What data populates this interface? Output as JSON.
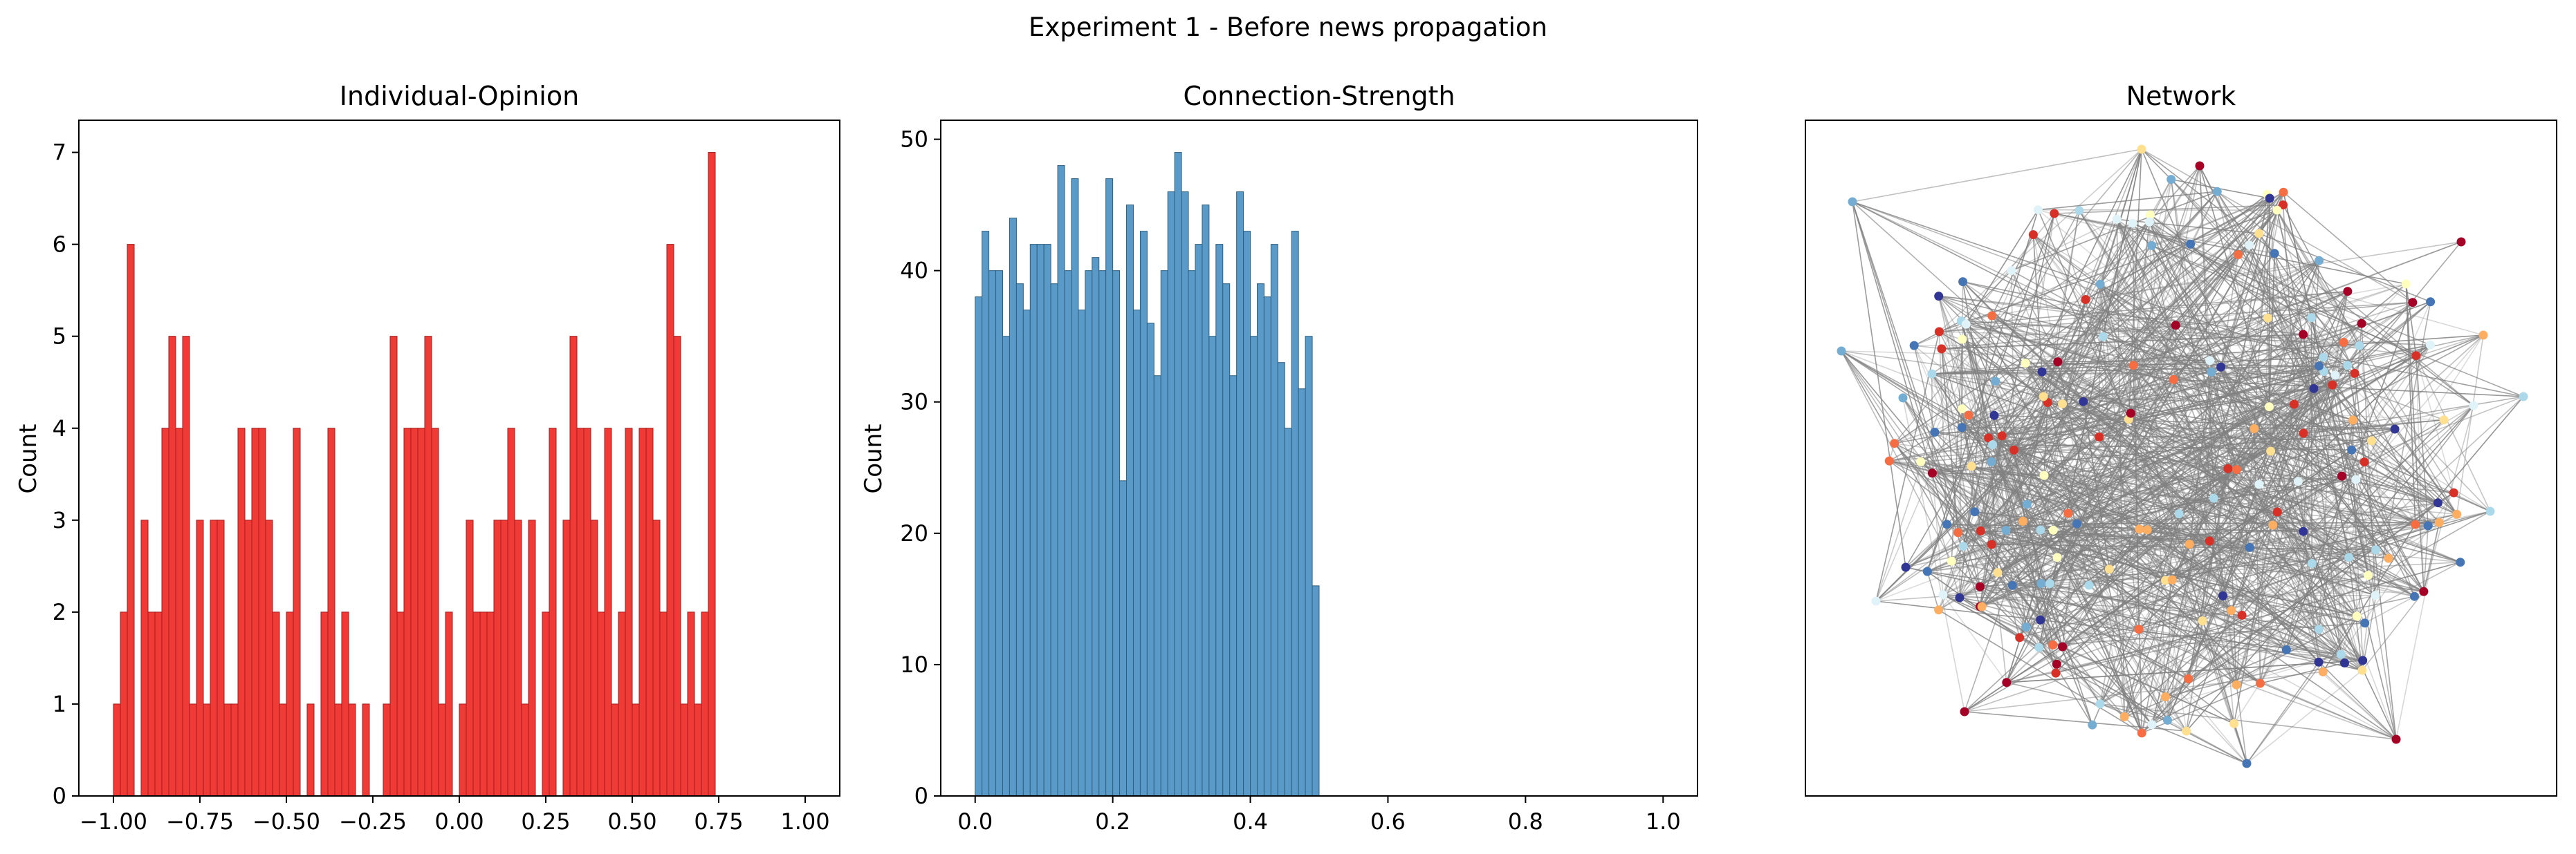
{
  "figure_title": "Experiment 1 - Before news propagation",
  "chart_data": [
    {
      "type": "bar",
      "title": "Individual-Opinion",
      "xlabel": "",
      "ylabel": "Count",
      "xlim": [
        -1.1,
        1.1
      ],
      "ylim": [
        0,
        7.35
      ],
      "xticks": [
        -1.0,
        -0.75,
        -0.5,
        -0.25,
        0.0,
        0.25,
        0.5,
        0.75,
        1.0
      ],
      "xtick_labels": [
        "−1.00",
        "−0.75",
        "−0.50",
        "−0.25",
        "0.00",
        "0.25",
        "0.50",
        "0.75",
        "1.00"
      ],
      "yticks": [
        0,
        1,
        2,
        3,
        4,
        5,
        6,
        7
      ],
      "ytick_labels": [
        "0",
        "1",
        "2",
        "3",
        "4",
        "5",
        "6",
        "7"
      ],
      "bin_start": -1.0,
      "bin_width": 0.02,
      "values": [
        1,
        2,
        6,
        0,
        3,
        2,
        2,
        4,
        5,
        4,
        5,
        1,
        3,
        1,
        3,
        3,
        1,
        1,
        4,
        3,
        4,
        4,
        3,
        2,
        1,
        2,
        4,
        0,
        1,
        0,
        2,
        4,
        1,
        2,
        1,
        0,
        1,
        0,
        0,
        1,
        5,
        2,
        4,
        4,
        4,
        5,
        4,
        1,
        2,
        0,
        1,
        3,
        2,
        2,
        2,
        3,
        3,
        4,
        3,
        1,
        3,
        0,
        2,
        4,
        0,
        3,
        5,
        4,
        4,
        3,
        2,
        4,
        1,
        2,
        4,
        1,
        4,
        4,
        3,
        2,
        6,
        5,
        1,
        2,
        1,
        2,
        7
      ],
      "colors": {
        "fill": "#f03a36",
        "edge": "#a01c1c"
      }
    },
    {
      "type": "bar",
      "title": "Connection-Strength",
      "xlabel": "",
      "ylabel": "Count",
      "xlim": [
        -0.05,
        1.05
      ],
      "ylim": [
        0,
        51.45
      ],
      "xticks": [
        0.0,
        0.2,
        0.4,
        0.6,
        0.8,
        1.0
      ],
      "xtick_labels": [
        "0.0",
        "0.2",
        "0.4",
        "0.6",
        "0.8",
        "1.0"
      ],
      "yticks": [
        0,
        10,
        20,
        30,
        40,
        50
      ],
      "ytick_labels": [
        "0",
        "10",
        "20",
        "30",
        "40",
        "50"
      ],
      "bin_start": 0.0,
      "bin_width": 0.01,
      "values": [
        38,
        43,
        40,
        40,
        35,
        44,
        39,
        37,
        42,
        42,
        42,
        39,
        48,
        40,
        47,
        37,
        40,
        41,
        40,
        47,
        40,
        24,
        45,
        37,
        43,
        36,
        32,
        40,
        46,
        49,
        46,
        40,
        42,
        45,
        35,
        42,
        39,
        32,
        46,
        43,
        35,
        39,
        38,
        42,
        33,
        28,
        43,
        31,
        35,
        16
      ],
      "colors": {
        "fill": "#5a9ac8",
        "edge": "#2e5f80"
      }
    },
    {
      "type": "network",
      "title": "Network",
      "edge_color": "#808080",
      "node_palette": [
        "#a50026",
        "#d73027",
        "#f46d43",
        "#fdae61",
        "#fee090",
        "#ffffbf",
        "#e0f3f8",
        "#abd9e9",
        "#74add1",
        "#4575b4",
        "#313695"
      ]
    }
  ]
}
